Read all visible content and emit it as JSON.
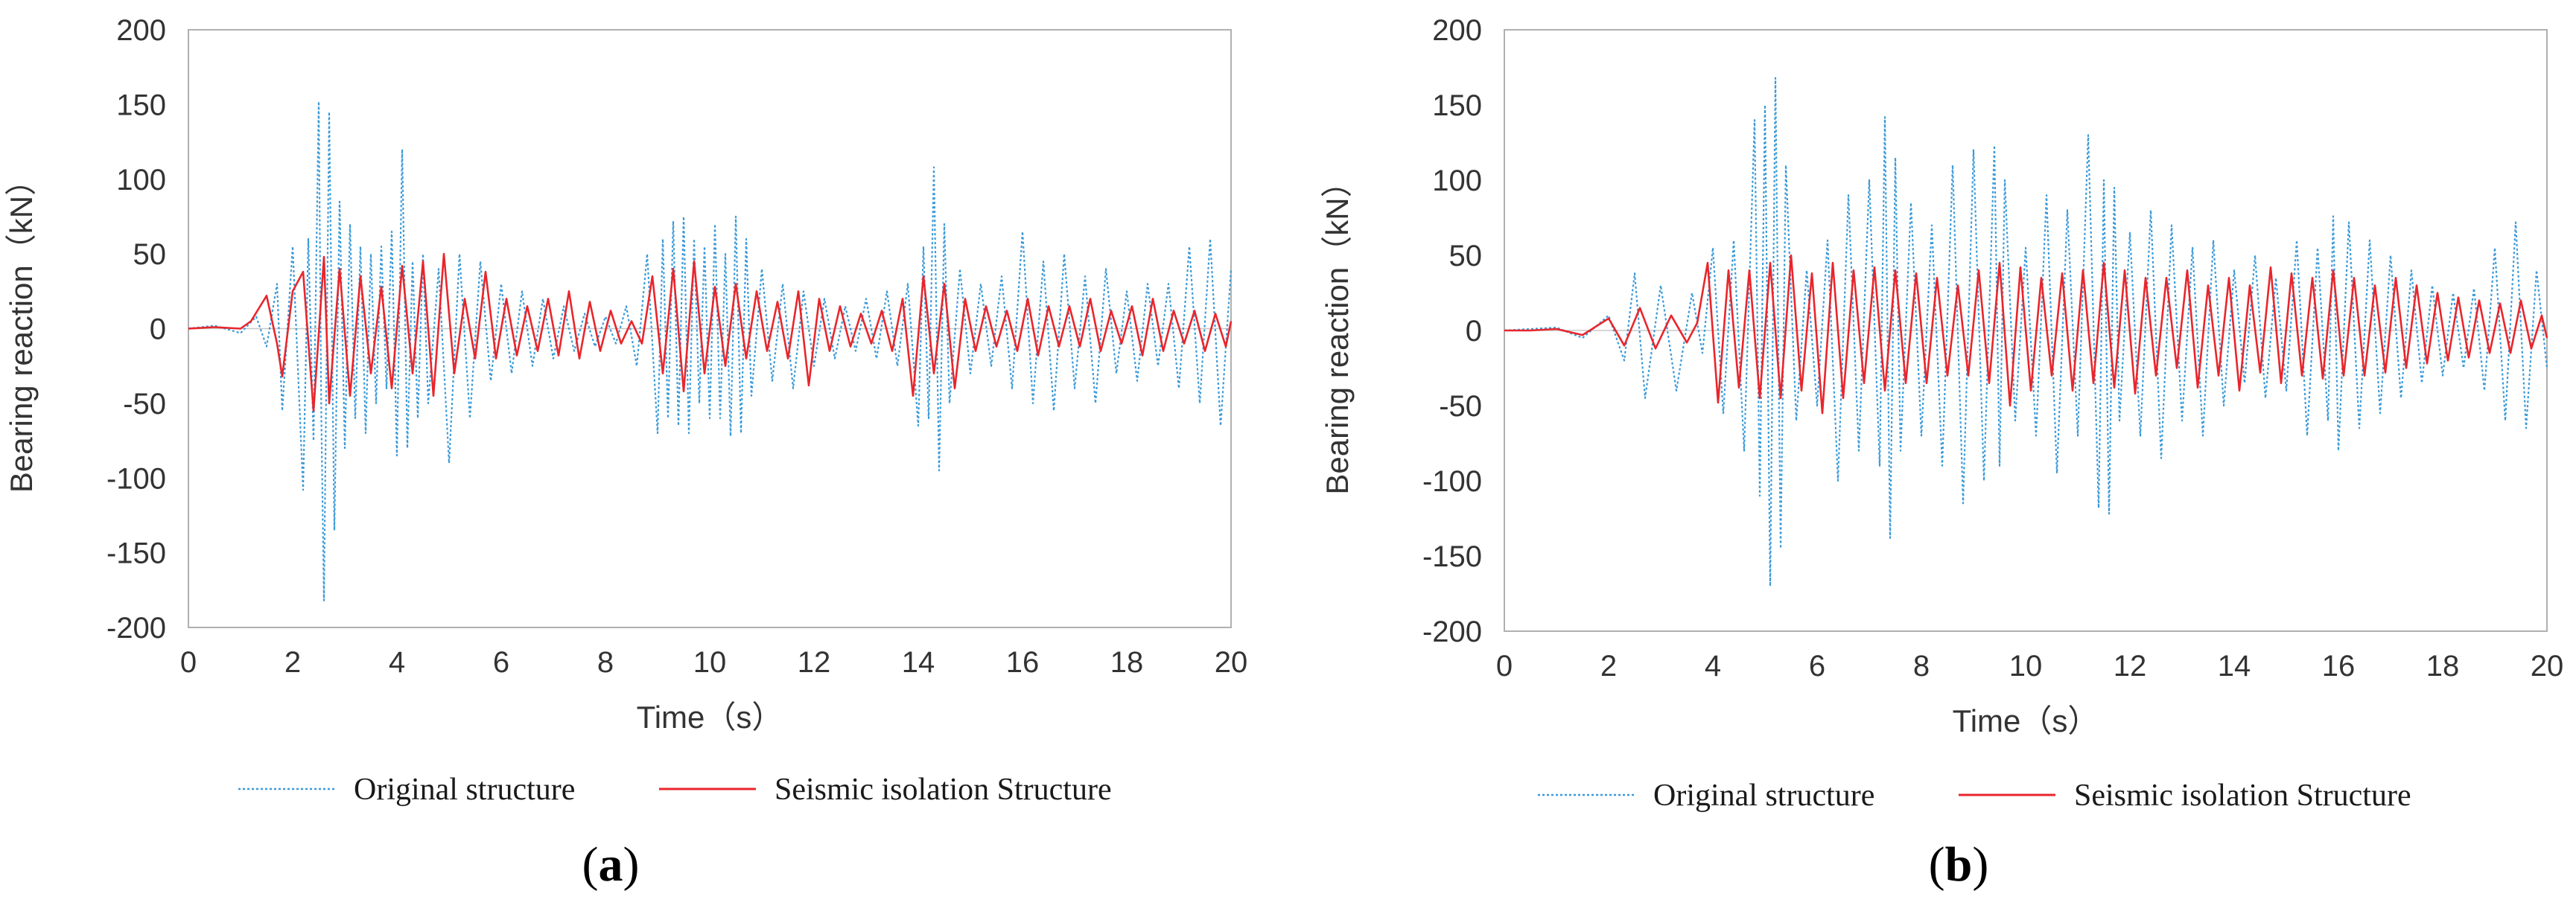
{
  "chart_data": [
    {
      "type": "line",
      "panel": "(a)",
      "panel_letter": "a",
      "xlabel": "Time（s）",
      "ylabel": "Bearing reaction（kN）",
      "xlim": [
        0,
        20
      ],
      "ylim": [
        -200,
        200
      ],
      "x_ticks": [
        "0",
        "2",
        "4",
        "6",
        "8",
        "10",
        "12",
        "14",
        "16",
        "18",
        "20"
      ],
      "y_ticks": [
        "200",
        "150",
        "100",
        "50",
        "0",
        "-50",
        "-100",
        "-150",
        "-200"
      ],
      "legend": [
        "Original structure",
        "Seismic isolation Structure"
      ],
      "series": [
        {
          "name": "Original structure",
          "color": "#3a9ad9",
          "style": "dotted",
          "x": [
            0,
            0.5,
            1.0,
            1.3,
            1.5,
            1.7,
            1.8,
            2.0,
            2.2,
            2.3,
            2.4,
            2.5,
            2.55,
            2.6,
            2.7,
            2.8,
            2.9,
            3.0,
            3.1,
            3.2,
            3.3,
            3.4,
            3.5,
            3.6,
            3.7,
            3.8,
            3.9,
            4.0,
            4.1,
            4.2,
            4.3,
            4.4,
            4.5,
            4.6,
            4.8,
            5.0,
            5.2,
            5.4,
            5.6,
            5.8,
            6.0,
            6.2,
            6.4,
            6.6,
            6.8,
            7.0,
            7.2,
            7.4,
            7.6,
            7.8,
            8.0,
            8.2,
            8.4,
            8.6,
            8.8,
            9.0,
            9.1,
            9.2,
            9.3,
            9.4,
            9.5,
            9.6,
            9.7,
            9.8,
            9.9,
            10.0,
            10.1,
            10.2,
            10.3,
            10.4,
            10.5,
            10.6,
            10.7,
            10.8,
            11.0,
            11.2,
            11.4,
            11.6,
            11.8,
            12.0,
            12.2,
            12.4,
            12.6,
            12.8,
            13.0,
            13.2,
            13.4,
            13.6,
            13.8,
            14.0,
            14.1,
            14.2,
            14.3,
            14.4,
            14.5,
            14.6,
            14.8,
            15.0,
            15.2,
            15.4,
            15.6,
            15.8,
            16.0,
            16.2,
            16.4,
            16.6,
            16.8,
            17.0,
            17.2,
            17.4,
            17.6,
            17.8,
            18.0,
            18.2,
            18.4,
            18.6,
            18.8,
            19.0,
            19.2,
            19.4,
            19.6,
            19.8,
            20.0
          ],
          "y": [
            0,
            2,
            -3,
            8,
            -12,
            30,
            -55,
            55,
            -108,
            60,
            -75,
            152,
            -60,
            -182,
            145,
            -135,
            85,
            -80,
            70,
            -60,
            55,
            -70,
            50,
            -50,
            55,
            -40,
            65,
            -85,
            120,
            -80,
            45,
            -60,
            50,
            -50,
            40,
            -90,
            50,
            -60,
            45,
            -35,
            30,
            -30,
            25,
            -25,
            20,
            -20,
            15,
            -15,
            10,
            -12,
            8,
            -10,
            15,
            -25,
            50,
            -70,
            60,
            -60,
            72,
            -65,
            75,
            -70,
            60,
            -50,
            55,
            -60,
            70,
            -60,
            50,
            -72,
            75,
            -70,
            60,
            -45,
            40,
            -35,
            30,
            -40,
            25,
            -25,
            20,
            -20,
            15,
            -15,
            20,
            -20,
            25,
            -25,
            30,
            -65,
            55,
            -60,
            108,
            -95,
            70,
            -50,
            40,
            -30,
            30,
            -25,
            35,
            -40,
            65,
            -50,
            45,
            -55,
            50,
            -40,
            35,
            -50,
            40,
            -30,
            25,
            -35,
            30,
            -25,
            30,
            -40,
            55,
            -50,
            60,
            -65,
            40
          ]
        },
        {
          "name": "Seismic isolation Structure",
          "color": "#e8262c",
          "style": "solid",
          "x": [
            0,
            0.5,
            1.0,
            1.2,
            1.5,
            1.7,
            1.8,
            2.0,
            2.2,
            2.4,
            2.6,
            2.7,
            2.9,
            3.1,
            3.3,
            3.5,
            3.7,
            3.9,
            4.1,
            4.3,
            4.5,
            4.7,
            4.9,
            5.1,
            5.3,
            5.5,
            5.7,
            5.9,
            6.1,
            6.3,
            6.5,
            6.7,
            6.9,
            7.1,
            7.3,
            7.5,
            7.7,
            7.9,
            8.1,
            8.3,
            8.5,
            8.7,
            8.9,
            9.1,
            9.3,
            9.5,
            9.7,
            9.9,
            10.1,
            10.3,
            10.5,
            10.7,
            10.9,
            11.1,
            11.3,
            11.5,
            11.7,
            11.9,
            12.1,
            12.3,
            12.5,
            12.7,
            12.9,
            13.1,
            13.3,
            13.5,
            13.7,
            13.9,
            14.1,
            14.3,
            14.5,
            14.7,
            14.9,
            15.1,
            15.3,
            15.5,
            15.7,
            15.9,
            16.1,
            16.3,
            16.5,
            16.7,
            16.9,
            17.1,
            17.3,
            17.5,
            17.7,
            17.9,
            18.1,
            18.3,
            18.5,
            18.7,
            18.9,
            19.1,
            19.3,
            19.5,
            19.7,
            19.9,
            20.0
          ],
          "y": [
            0,
            1,
            0,
            5,
            22,
            -10,
            -32,
            25,
            38,
            -55,
            48,
            -50,
            40,
            -45,
            35,
            -30,
            28,
            -40,
            42,
            -30,
            45,
            -45,
            50,
            -30,
            20,
            -20,
            38,
            -20,
            20,
            -18,
            15,
            -15,
            20,
            -18,
            25,
            -20,
            18,
            -15,
            12,
            -10,
            5,
            -10,
            35,
            -30,
            40,
            -42,
            45,
            -30,
            28,
            -25,
            30,
            -20,
            25,
            -15,
            18,
            -20,
            25,
            -38,
            20,
            -15,
            15,
            -12,
            10,
            -10,
            12,
            -15,
            20,
            -45,
            35,
            -30,
            30,
            -40,
            20,
            -15,
            15,
            -12,
            12,
            -15,
            20,
            -18,
            15,
            -12,
            15,
            -12,
            20,
            -15,
            12,
            -10,
            15,
            -18,
            20,
            -15,
            12,
            -10,
            12,
            -15,
            10,
            -12,
            5
          ]
        }
      ]
    },
    {
      "type": "line",
      "panel": "(b)",
      "panel_letter": "b",
      "xlabel": "Time（s）",
      "ylabel": "Bearing reaction（kN）",
      "xlim": [
        0,
        20
      ],
      "ylim": [
        -200,
        200
      ],
      "x_ticks": [
        "0",
        "2",
        "4",
        "6",
        "8",
        "10",
        "12",
        "14",
        "16",
        "18",
        "20"
      ],
      "y_ticks": [
        "200",
        "150",
        "100",
        "50",
        "0",
        "-50",
        "-100",
        "-150",
        "-200"
      ],
      "legend": [
        "Original structure",
        "Seismic isolation Structure"
      ],
      "series": [
        {
          "name": "Original structure",
          "color": "#3a9ad9",
          "style": "dotted",
          "x": [
            0,
            0.5,
            1.0,
            1.5,
            2.0,
            2.3,
            2.5,
            2.7,
            3.0,
            3.3,
            3.6,
            3.8,
            4.0,
            4.2,
            4.4,
            4.6,
            4.8,
            4.9,
            5.0,
            5.1,
            5.2,
            5.3,
            5.4,
            5.6,
            5.8,
            6.0,
            6.2,
            6.4,
            6.6,
            6.8,
            7.0,
            7.2,
            7.3,
            7.4,
            7.5,
            7.6,
            7.8,
            8.0,
            8.2,
            8.4,
            8.6,
            8.8,
            9.0,
            9.2,
            9.4,
            9.5,
            9.6,
            9.8,
            10.0,
            10.2,
            10.4,
            10.6,
            10.8,
            11.0,
            11.2,
            11.4,
            11.5,
            11.6,
            11.7,
            11.8,
            12.0,
            12.2,
            12.4,
            12.6,
            12.8,
            13.0,
            13.2,
            13.4,
            13.6,
            13.8,
            14.0,
            14.2,
            14.4,
            14.6,
            14.8,
            15.0,
            15.2,
            15.4,
            15.6,
            15.8,
            15.9,
            16.0,
            16.2,
            16.4,
            16.6,
            16.8,
            17.0,
            17.2,
            17.4,
            17.6,
            17.8,
            18.0,
            18.2,
            18.4,
            18.6,
            18.8,
            19.0,
            19.2,
            19.4,
            19.6,
            19.8,
            20.0
          ],
          "y": [
            0,
            1,
            2,
            -5,
            10,
            -20,
            38,
            -45,
            30,
            -40,
            25,
            -15,
            55,
            -55,
            60,
            -80,
            140,
            -110,
            150,
            -170,
            168,
            -145,
            110,
            -60,
            40,
            -50,
            60,
            -100,
            90,
            -80,
            100,
            -90,
            142,
            -138,
            115,
            -80,
            85,
            -70,
            70,
            -90,
            110,
            -115,
            120,
            -100,
            123,
            -90,
            100,
            -60,
            55,
            -70,
            90,
            -95,
            80,
            -70,
            130,
            -118,
            100,
            -122,
            95,
            -60,
            65,
            -70,
            80,
            -85,
            70,
            -60,
            55,
            -70,
            60,
            -50,
            40,
            -35,
            50,
            -45,
            35,
            -40,
            60,
            -70,
            55,
            -60,
            76,
            -80,
            72,
            -65,
            60,
            -55,
            50,
            -45,
            40,
            -35,
            30,
            -30,
            25,
            -25,
            28,
            -40,
            55,
            -60,
            72,
            -65,
            40,
            -25
          ]
        },
        {
          "name": "Seismic isolation Structure",
          "color": "#e8262c",
          "style": "solid",
          "x": [
            0,
            0.5,
            1.0,
            1.5,
            2.0,
            2.3,
            2.6,
            2.9,
            3.2,
            3.5,
            3.7,
            3.9,
            4.1,
            4.3,
            4.5,
            4.7,
            4.9,
            5.1,
            5.3,
            5.5,
            5.7,
            5.9,
            6.1,
            6.3,
            6.5,
            6.7,
            6.9,
            7.1,
            7.3,
            7.5,
            7.7,
            7.9,
            8.1,
            8.3,
            8.5,
            8.7,
            8.9,
            9.1,
            9.3,
            9.5,
            9.7,
            9.9,
            10.1,
            10.3,
            10.5,
            10.7,
            10.9,
            11.1,
            11.3,
            11.5,
            11.7,
            11.9,
            12.1,
            12.3,
            12.5,
            12.7,
            12.9,
            13.1,
            13.3,
            13.5,
            13.7,
            13.9,
            14.1,
            14.3,
            14.5,
            14.7,
            14.9,
            15.1,
            15.3,
            15.5,
            15.7,
            15.9,
            16.1,
            16.3,
            16.5,
            16.7,
            16.9,
            17.1,
            17.3,
            17.5,
            17.7,
            17.9,
            18.1,
            18.3,
            18.5,
            18.7,
            18.9,
            19.1,
            19.3,
            19.5,
            19.7,
            19.9,
            20.0
          ],
          "y": [
            0,
            0,
            1,
            -3,
            8,
            -10,
            15,
            -12,
            10,
            -8,
            5,
            45,
            -48,
            40,
            -38,
            40,
            -45,
            45,
            -45,
            50,
            -40,
            38,
            -55,
            45,
            -45,
            40,
            -35,
            42,
            -40,
            40,
            -35,
            38,
            -35,
            35,
            -30,
            30,
            -30,
            40,
            -35,
            45,
            -50,
            42,
            -40,
            35,
            -30,
            38,
            -40,
            40,
            -35,
            45,
            -38,
            40,
            -42,
            35,
            -30,
            35,
            -25,
            40,
            -38,
            30,
            -30,
            35,
            -40,
            30,
            -28,
            42,
            -35,
            38,
            -30,
            35,
            -32,
            40,
            -30,
            35,
            -30,
            30,
            -28,
            35,
            -25,
            30,
            -22,
            25,
            -20,
            22,
            -18,
            20,
            -15,
            18,
            -15,
            20,
            -12,
            10,
            -5
          ]
        }
      ]
    }
  ]
}
